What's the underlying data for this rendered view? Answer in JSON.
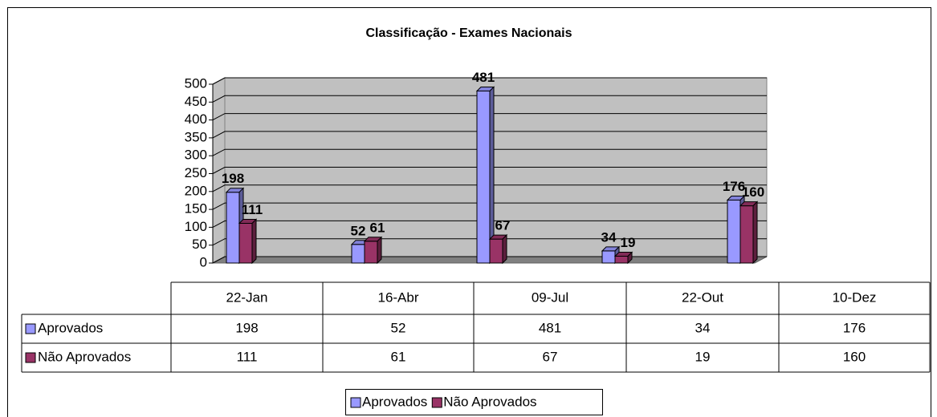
{
  "chart_data": {
    "type": "bar",
    "title": "Classificação - Exames Nacionais",
    "categories": [
      "22-Jan",
      "16-Abr",
      "09-Jul",
      "22-Out",
      "10-Dez"
    ],
    "series": [
      {
        "name": "Aprovados",
        "color": "#9999ff",
        "values": [
          198,
          52,
          481,
          34,
          176
        ]
      },
      {
        "name": "Não Aprovados",
        "color": "#993366",
        "values": [
          111,
          61,
          67,
          19,
          160
        ]
      }
    ],
    "ylim": [
      0,
      500
    ],
    "yticks": [
      0,
      50,
      100,
      150,
      200,
      250,
      300,
      350,
      400,
      450,
      500
    ],
    "grid": true,
    "legend": "bottom"
  }
}
